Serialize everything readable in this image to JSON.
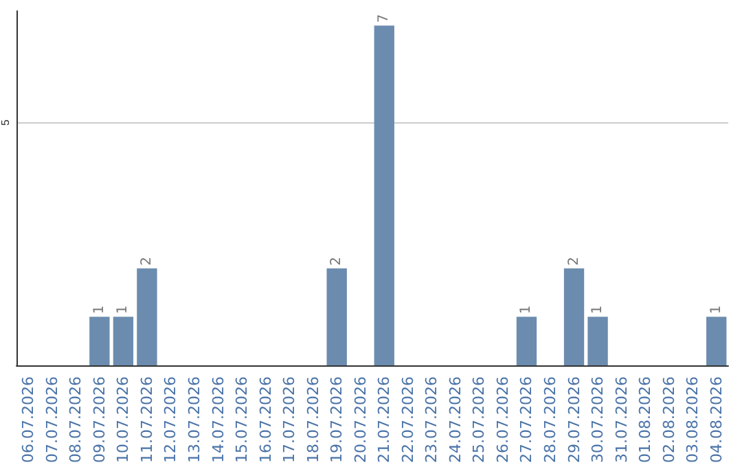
{
  "chart_data": {
    "type": "bar",
    "categories": [
      "06.07.2026",
      "07.07.2026",
      "08.07.2026",
      "09.07.2026",
      "10.07.2026",
      "11.07.2026",
      "12.07.2026",
      "13.07.2026",
      "14.07.2026",
      "15.07.2026",
      "16.07.2026",
      "17.07.2026",
      "18.07.2026",
      "19.07.2026",
      "20.07.2026",
      "21.07.2026",
      "22.07.2026",
      "23.07.2026",
      "24.07.2026",
      "25.07.2026",
      "26.07.2026",
      "27.07.2026",
      "28.07.2026",
      "29.07.2026",
      "30.07.2026",
      "31.07.2026",
      "01.08.2026",
      "02.08.2026",
      "03.08.2026",
      "04.08.2026"
    ],
    "values": [
      0,
      0,
      0,
      1,
      1,
      2,
      0,
      0,
      0,
      0,
      0,
      0,
      0,
      2,
      0,
      7,
      0,
      0,
      0,
      0,
      0,
      1,
      0,
      2,
      1,
      0,
      0,
      0,
      0,
      1
    ],
    "value_labels": [
      null,
      null,
      null,
      "1",
      "1",
      "2",
      null,
      null,
      null,
      null,
      null,
      null,
      null,
      "2",
      null,
      "7",
      null,
      null,
      null,
      null,
      null,
      "1",
      null,
      "2",
      "1",
      null,
      null,
      null,
      null,
      "1"
    ],
    "color": "#6b8cae",
    "ylim": [
      0,
      7.3
    ],
    "yticks": [
      5
    ],
    "grid": "y"
  }
}
